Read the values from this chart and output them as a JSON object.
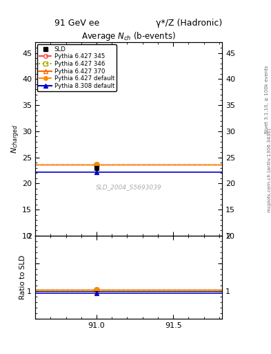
{
  "title_center": "91 GeV ee",
  "title_right": "γ*/Z (Hadronic)",
  "main_title": "Average $N_{ch}$ (b-events)",
  "ylabel_main": "$N_{charged}$",
  "ylabel_ratio": "Ratio to SLD",
  "right_label_top": "Rivet 3.1.10, ≥ 100k events",
  "right_label_bottom": "mcplots.cern.ch [arXiv:1306.3436]",
  "watermark": "SLD_2004_S5693039",
  "xlim": [
    90.6,
    91.82
  ],
  "ylim_main": [
    10,
    47
  ],
  "ylim_ratio": [
    0.5,
    2.0
  ],
  "xticks": [
    91.0,
    91.5
  ],
  "yticks_main": [
    10,
    15,
    20,
    25,
    30,
    35,
    40,
    45
  ],
  "yticks_ratio": [
    0.5,
    1.0,
    1.5,
    2.0
  ],
  "ytick_labels_ratio": [
    "",
    "1",
    "",
    "2"
  ],
  "data_x": 91.0,
  "sld_value": 23.0,
  "sld_err": 0.4,
  "pythia_lines": [
    {
      "label": "Pythia 6.427 345",
      "value": 23.65,
      "color": "#ff4444",
      "linestyle": "--",
      "marker": "o",
      "mfc": "none",
      "lw": 1.0
    },
    {
      "label": "Pythia 6.427 346",
      "value": 23.65,
      "color": "#aaaa00",
      "linestyle": ":",
      "marker": "s",
      "mfc": "none",
      "lw": 1.0
    },
    {
      "label": "Pythia 6.427 370",
      "value": 23.65,
      "color": "#ff6600",
      "linestyle": "-",
      "marker": "^",
      "mfc": "none",
      "lw": 1.0
    },
    {
      "label": "Pythia 6.427 default",
      "value": 23.65,
      "color": "#ff8800",
      "linestyle": "--",
      "marker": "o",
      "mfc": "#ff8800",
      "lw": 1.0
    },
    {
      "label": "Pythia 8.308 default",
      "value": 22.2,
      "color": "#0000cc",
      "linestyle": "-",
      "marker": "^",
      "mfc": "#0000cc",
      "lw": 1.2
    }
  ],
  "bg_color": "#ffffff"
}
